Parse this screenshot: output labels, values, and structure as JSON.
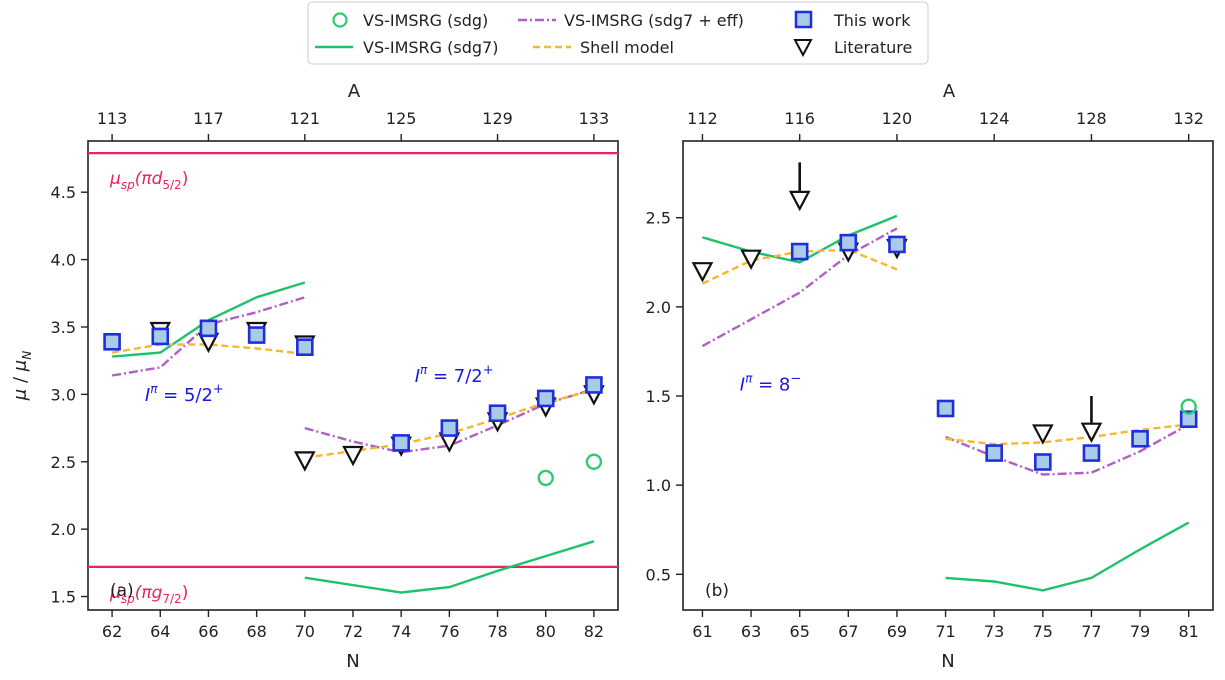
{
  "legend": {
    "items": [
      {
        "label": "VS-IMSRG (sdg)",
        "marker": "circle-open",
        "color": "#2ecc71"
      },
      {
        "label": "VS-IMSRG (sdg7 + eff)",
        "marker": "dashdot",
        "color": "#b05fc4"
      },
      {
        "label": "This work",
        "marker": "square",
        "color": "#1f2fdd"
      },
      {
        "label": "VS-IMSRG (sdg7)",
        "marker": "solid",
        "color": "#1fc26a"
      },
      {
        "label": "Shell model",
        "marker": "dashed",
        "color": "#f5b82e"
      },
      {
        "label": "Literature",
        "marker": "triangle-down",
        "color": "#111111"
      }
    ]
  },
  "colors": {
    "sdg": "#2ecc71",
    "sdg7": "#1fc26a",
    "eff": "#b05fc4",
    "shell": "#f5b82e",
    "work_edge": "#1f2fdd",
    "work_fill": "#a9cbe8",
    "lit": "#111111",
    "sp": "#e8245a",
    "annot": "#1a1adf"
  },
  "chart_data": [
    {
      "type": "line",
      "panel_label": "(a)",
      "xlabel": "N",
      "ylabel": "μ / μ_N",
      "top_xlabel": "A",
      "xlim": [
        61,
        83
      ],
      "ylim": [
        1.4,
        4.88
      ],
      "xticks": [
        62,
        64,
        66,
        68,
        70,
        72,
        74,
        76,
        78,
        80,
        82
      ],
      "yticks": [
        1.5,
        2.0,
        2.5,
        3.0,
        3.5,
        4.0,
        4.5
      ],
      "top_ticks": [
        {
          "x": 62,
          "label": "113"
        },
        {
          "x": 66,
          "label": "117"
        },
        {
          "x": 70,
          "label": "121"
        },
        {
          "x": 74,
          "label": "125"
        },
        {
          "x": 78,
          "label": "129"
        },
        {
          "x": 82,
          "label": "133"
        }
      ],
      "hlines": [
        {
          "y": 4.79,
          "label": "μ_sp(πd_5/2)"
        },
        {
          "y": 1.72,
          "label": "μ_sp(πg_7/2)"
        }
      ],
      "annotations": [
        {
          "text": "I^π = 5/2 ⁺",
          "x": 65.0,
          "y": 2.95
        },
        {
          "text": "I^π = 7/2 ⁺",
          "x": 76.2,
          "y": 3.09
        }
      ],
      "series": [
        {
          "name": "VS-IMSRG (sdg7)",
          "style": "sdg7",
          "points": [
            [
              62,
              3.28
            ],
            [
              64,
              3.31
            ],
            [
              66,
              3.55
            ],
            [
              68,
              3.72
            ],
            [
              70,
              3.83
            ]
          ]
        },
        {
          "name": "VS-IMSRG (sdg7)",
          "style": "sdg7",
          "points": [
            [
              70,
              1.64
            ],
            [
              74,
              1.53
            ],
            [
              76,
              1.57
            ],
            [
              78,
              1.69
            ],
            [
              80,
              1.8
            ],
            [
              82,
              1.91
            ]
          ]
        },
        {
          "name": "VS-IMSRG (sdg7 + eff)",
          "style": "eff",
          "points": [
            [
              62,
              3.14
            ],
            [
              64,
              3.2
            ],
            [
              66,
              3.52
            ],
            [
              68,
              3.61
            ],
            [
              70,
              3.72
            ]
          ]
        },
        {
          "name": "VS-IMSRG (sdg7 + eff)",
          "style": "eff",
          "points": [
            [
              70,
              2.75
            ],
            [
              72,
              2.65
            ],
            [
              74,
              2.57
            ],
            [
              76,
              2.62
            ],
            [
              78,
              2.77
            ],
            [
              80,
              2.93
            ],
            [
              82,
              3.04
            ]
          ]
        },
        {
          "name": "Shell model",
          "style": "shell",
          "points": [
            [
              62,
              3.31
            ],
            [
              64,
              3.37
            ],
            [
              66,
              3.37
            ],
            [
              68,
              3.34
            ],
            [
              70,
              3.3
            ]
          ]
        },
        {
          "name": "Shell model",
          "style": "shell",
          "points": [
            [
              70,
              2.53
            ],
            [
              72,
              2.58
            ],
            [
              74,
              2.63
            ],
            [
              76,
              2.71
            ],
            [
              78,
              2.82
            ],
            [
              80,
              2.94
            ],
            [
              82,
              3.03
            ]
          ]
        },
        {
          "name": "Literature",
          "style": "lit",
          "points": [
            [
              64,
              3.47
            ],
            [
              66,
              3.39
            ],
            [
              68,
              3.47
            ],
            [
              70,
              3.37
            ],
            [
              70,
              2.51
            ],
            [
              72,
              2.55
            ],
            [
              74,
              2.62
            ],
            [
              76,
              2.65
            ],
            [
              78,
              2.8
            ],
            [
              80,
              2.91
            ],
            [
              82,
              3.0
            ]
          ]
        },
        {
          "name": "This work",
          "style": "work",
          "points": [
            [
              62,
              3.39
            ],
            [
              64,
              3.43
            ],
            [
              66,
              3.49
            ],
            [
              68,
              3.44
            ],
            [
              70,
              3.35
            ],
            [
              74,
              2.64
            ],
            [
              76,
              2.75
            ],
            [
              78,
              2.86
            ],
            [
              80,
              2.97
            ],
            [
              82,
              3.07
            ]
          ]
        },
        {
          "name": "VS-IMSRG (sdg)",
          "style": "sdg",
          "points": [
            [
              80,
              2.38
            ],
            [
              82,
              2.5
            ]
          ]
        }
      ]
    },
    {
      "type": "line",
      "panel_label": "(b)",
      "xlabel": "N",
      "ylabel": "",
      "top_xlabel": "A",
      "xlim": [
        60.2,
        82.0
      ],
      "ylim": [
        0.3,
        2.93
      ],
      "xticks": [
        61,
        63,
        65,
        67,
        69,
        71,
        73,
        75,
        77,
        79,
        81
      ],
      "yticks": [
        0.5,
        1.0,
        1.5,
        2.0,
        2.5
      ],
      "top_ticks": [
        {
          "x": 61,
          "label": "112"
        },
        {
          "x": 65,
          "label": "116"
        },
        {
          "x": 69,
          "label": "120"
        },
        {
          "x": 73,
          "label": "124"
        },
        {
          "x": 77,
          "label": "128"
        },
        {
          "x": 81,
          "label": "132"
        }
      ],
      "hlines": [],
      "annotations": [
        {
          "text": "I^π = 8⁻",
          "x": 63.8,
          "y": 1.53
        }
      ],
      "arrows": [
        {
          "x": 65,
          "y_from": 2.81,
          "y_to": 2.6
        },
        {
          "x": 77,
          "y_from": 1.5,
          "y_to": 1.3
        }
      ],
      "series": [
        {
          "name": "VS-IMSRG (sdg7)",
          "style": "sdg7",
          "points": [
            [
              61,
              2.39
            ],
            [
              63,
              2.31
            ],
            [
              65,
              2.25
            ],
            [
              67,
              2.4
            ],
            [
              69,
              2.51
            ]
          ]
        },
        {
          "name": "VS-IMSRG (sdg7)",
          "style": "sdg7",
          "points": [
            [
              71,
              0.48
            ],
            [
              73,
              0.46
            ],
            [
              75,
              0.41
            ],
            [
              77,
              0.48
            ],
            [
              79,
              0.64
            ],
            [
              81,
              0.79
            ]
          ]
        },
        {
          "name": "VS-IMSRG (sdg7 + eff)",
          "style": "eff",
          "points": [
            [
              61,
              1.78
            ],
            [
              63,
              1.93
            ],
            [
              65,
              2.08
            ],
            [
              67,
              2.29
            ],
            [
              69,
              2.44
            ]
          ]
        },
        {
          "name": "VS-IMSRG (sdg7 + eff)",
          "style": "eff",
          "points": [
            [
              71,
              1.27
            ],
            [
              73,
              1.16
            ],
            [
              75,
              1.06
            ],
            [
              77,
              1.07
            ],
            [
              79,
              1.19
            ],
            [
              81,
              1.34
            ]
          ]
        },
        {
          "name": "Shell model",
          "style": "shell",
          "points": [
            [
              61,
              2.13
            ],
            [
              63,
              2.26
            ],
            [
              65,
              2.31
            ],
            [
              67,
              2.32
            ],
            [
              69,
              2.21
            ]
          ]
        },
        {
          "name": "Shell model",
          "style": "shell",
          "points": [
            [
              71,
              1.26
            ],
            [
              73,
              1.23
            ],
            [
              75,
              1.24
            ],
            [
              77,
              1.27
            ],
            [
              79,
              1.31
            ],
            [
              81,
              1.34
            ]
          ]
        },
        {
          "name": "Literature",
          "style": "lit",
          "points": [
            [
              61,
              2.2
            ],
            [
              63,
              2.27
            ],
            [
              65,
              2.6
            ],
            [
              67,
              2.31
            ],
            [
              69,
              2.33
            ],
            [
              75,
              1.29
            ],
            [
              77,
              1.3
            ]
          ]
        },
        {
          "name": "This work",
          "style": "work",
          "points": [
            [
              65,
              2.31
            ],
            [
              67,
              2.36
            ],
            [
              69,
              2.35
            ],
            [
              71,
              1.43
            ],
            [
              73,
              1.18
            ],
            [
              75,
              1.13
            ],
            [
              77,
              1.18
            ],
            [
              79,
              1.26
            ],
            [
              81,
              1.37
            ]
          ]
        },
        {
          "name": "VS-IMSRG (sdg)",
          "style": "sdg",
          "points": [
            [
              81,
              1.44
            ]
          ]
        }
      ]
    }
  ]
}
